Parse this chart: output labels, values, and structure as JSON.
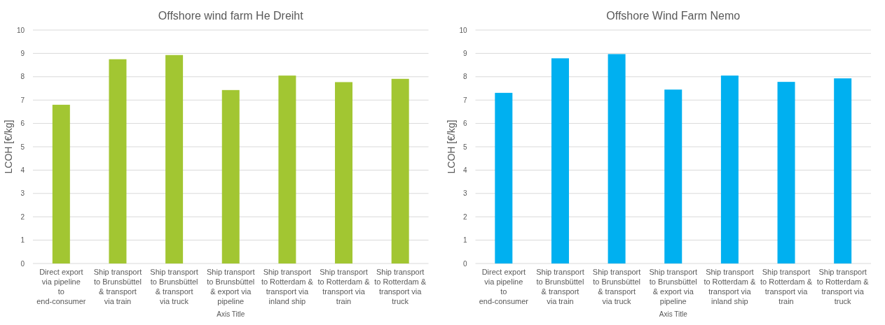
{
  "chart_data": [
    {
      "type": "bar",
      "title": "Offshore wind farm He Dreiht",
      "xlabel": "Axis Title",
      "ylabel": "LCOH [€/kg]",
      "categories": [
        "Direct export via pipeline to end-consumer",
        "Ship transport to Brunsbüttel & transport via train",
        "Ship transport to Brunsbüttel & transport via truck",
        "Ship transport to Brunsbüttel & export via pipeline",
        "Ship transport to Rotterdam & transport via inland ship",
        "Ship transport to Rotterdam & transport via train",
        "Ship transport to Rotterdam & transport via truck"
      ],
      "series": [
        {
          "color": "#a2c632",
          "values": [
            6.8,
            8.75,
            8.93,
            7.43,
            8.05,
            7.77,
            7.91
          ]
        }
      ],
      "ylim": [
        0,
        10
      ],
      "yticks": [
        0,
        1,
        2,
        3,
        4,
        5,
        6,
        7,
        8,
        9,
        10
      ],
      "grid": "y"
    },
    {
      "type": "bar",
      "title": "Offshore Wind Farm Nemo",
      "xlabel": "Axis Title",
      "ylabel": "LCOH [€/kg]",
      "categories": [
        "Direct export via pipeline to end-consumer",
        "Ship transport to Brunsbüttel & transport via train",
        "Ship transport to Brunsbüttel & transport via truck",
        "Ship transport to Brunsbüttel & export via pipeline",
        "Ship transport to Rotterdam & transport via inland ship",
        "Ship transport to Rotterdam & transport via train",
        "Ship transport to Rotterdam & transport via truck"
      ],
      "series": [
        {
          "color": "#00b0f0",
          "values": [
            7.31,
            8.79,
            8.97,
            7.45,
            8.05,
            7.78,
            7.93
          ]
        }
      ],
      "ylim": [
        0,
        10
      ],
      "yticks": [
        0,
        1,
        2,
        3,
        4,
        5,
        6,
        7,
        8,
        9,
        10
      ],
      "grid": "y"
    }
  ]
}
